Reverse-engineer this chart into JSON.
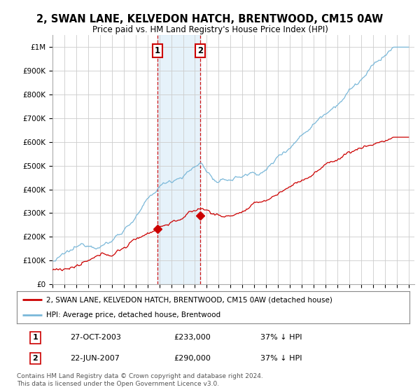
{
  "title": "2, SWAN LANE, KELVEDON HATCH, BRENTWOOD, CM15 0AW",
  "subtitle": "Price paid vs. HM Land Registry's House Price Index (HPI)",
  "title_fontsize": 10.5,
  "subtitle_fontsize": 8.5,
  "background_color": "#ffffff",
  "plot_bg_color": "#ffffff",
  "grid_color": "#cccccc",
  "hpi_color": "#7ab8d9",
  "price_color": "#cc0000",
  "sale1_date_num": 2003.82,
  "sale1_price": 233000,
  "sale1_label": "1",
  "sale2_date_num": 2007.47,
  "sale2_price": 290000,
  "sale2_label": "2",
  "yticks": [
    0,
    100000,
    200000,
    300000,
    400000,
    500000,
    600000,
    700000,
    800000,
    900000,
    1000000
  ],
  "ytick_labels": [
    "£0",
    "£100K",
    "£200K",
    "£300K",
    "£400K",
    "£500K",
    "£600K",
    "£700K",
    "£800K",
    "£900K",
    "£1M"
  ],
  "xmin": 1995,
  "xmax": 2025.5,
  "ymin": 0,
  "ymax": 1050000,
  "legend_line1": "2, SWAN LANE, KELVEDON HATCH, BRENTWOOD, CM15 0AW (detached house)",
  "legend_line2": "HPI: Average price, detached house, Brentwood",
  "table_row1": [
    "1",
    "27-OCT-2003",
    "£233,000",
    "37% ↓ HPI"
  ],
  "table_row2": [
    "2",
    "22-JUN-2007",
    "£290,000",
    "37% ↓ HPI"
  ],
  "footnote": "Contains HM Land Registry data © Crown copyright and database right 2024.\nThis data is licensed under the Open Government Licence v3.0.",
  "sale_box_color": "#cc0000",
  "shade_color": "#d6eaf8"
}
